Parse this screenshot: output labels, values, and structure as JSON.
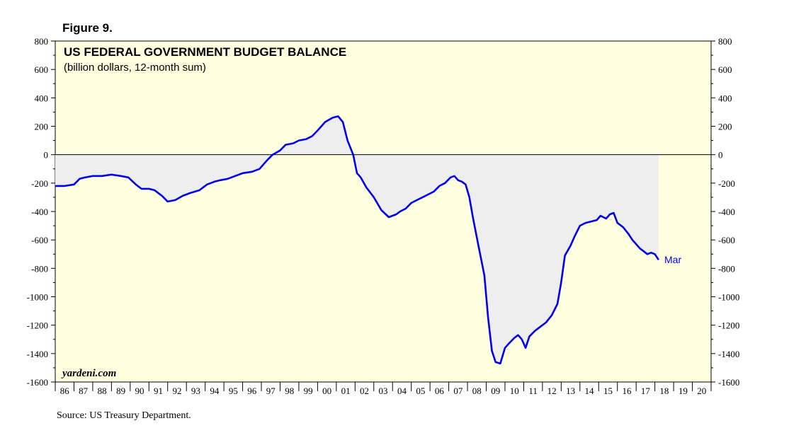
{
  "figure_label": "Figure 9.",
  "source": "Source: US Treasury Department.",
  "colors": {
    "plot_bg": "#ffffe0",
    "fill": "#eeeeee",
    "line": "#0000ee",
    "axis": "#000000"
  },
  "chart_data": {
    "type": "area",
    "title": "US FEDERAL GOVERNMENT BUDGET BALANCE",
    "subtitle": "(billion dollars, 12-month sum)",
    "watermark": "yardeni.com",
    "end_label": "Mar",
    "xlabel": "",
    "ylabel": "",
    "ylim": [
      -1600,
      800
    ],
    "yticks": [
      800,
      600,
      400,
      200,
      0,
      -200,
      -400,
      -600,
      -800,
      -1000,
      -1200,
      -1400,
      -1600
    ],
    "xlim": [
      1986,
      2021
    ],
    "xtick_labels": [
      "86",
      "87",
      "88",
      "89",
      "90",
      "91",
      "92",
      "93",
      "94",
      "95",
      "96",
      "97",
      "98",
      "99",
      "00",
      "01",
      "02",
      "03",
      "04",
      "05",
      "06",
      "07",
      "08",
      "09",
      "10",
      "11",
      "12",
      "13",
      "14",
      "15",
      "16",
      "17",
      "18",
      "19",
      "20"
    ],
    "grid": false,
    "fill_to_zero": true,
    "series": [
      {
        "x": [
          1986.0,
          1986.5,
          1987.0,
          1987.3,
          1987.6,
          1988.0,
          1988.5,
          1989.0,
          1989.5,
          1989.9,
          1990.3,
          1990.6,
          1991.0,
          1991.3,
          1991.7,
          1992.0,
          1992.4,
          1992.8,
          1993.2,
          1993.7,
          1994.1,
          1994.5,
          1994.8,
          1995.2,
          1995.6,
          1996.0,
          1996.5,
          1996.9,
          1997.3,
          1997.6,
          1998.0,
          1998.3,
          1998.7,
          1999.0,
          1999.4,
          1999.7,
          2000.0,
          2000.4,
          2000.8,
          2001.1,
          2001.35,
          2001.6,
          2001.9,
          2002.1,
          2002.3,
          2002.6,
          2003.0,
          2003.4,
          2003.8,
          2004.2,
          2004.4,
          2004.7,
          2005.0,
          2005.3,
          2005.6,
          2005.9,
          2006.2,
          2006.5,
          2006.8,
          2007.1,
          2007.3,
          2007.5,
          2007.7,
          2007.9,
          2008.1,
          2008.3,
          2008.6,
          2008.9,
          2009.1,
          2009.3,
          2009.5,
          2009.75,
          2010.0,
          2010.2,
          2010.5,
          2010.7,
          2010.9,
          2011.1,
          2011.3,
          2011.6,
          2011.9,
          2012.2,
          2012.5,
          2012.8,
          2013.0,
          2013.2,
          2013.5,
          2013.7,
          2014.0,
          2014.3,
          2014.6,
          2014.9,
          2015.1,
          2015.4,
          2015.6,
          2015.8,
          2016.0,
          2016.3,
          2016.6,
          2016.8,
          2017.0,
          2017.2,
          2017.4,
          2017.6,
          2017.8,
          2018.0,
          2018.2
        ],
        "y": [
          -220,
          -220,
          -210,
          -170,
          -160,
          -150,
          -150,
          -140,
          -150,
          -160,
          -210,
          -240,
          -240,
          -250,
          -290,
          -330,
          -320,
          -290,
          -270,
          -250,
          -210,
          -190,
          -180,
          -170,
          -150,
          -130,
          -120,
          -100,
          -40,
          0,
          30,
          70,
          80,
          100,
          110,
          130,
          170,
          230,
          260,
          270,
          230,
          100,
          0,
          -130,
          -160,
          -230,
          -300,
          -390,
          -440,
          -420,
          -400,
          -380,
          -340,
          -320,
          -300,
          -280,
          -260,
          -220,
          -200,
          -160,
          -150,
          -180,
          -190,
          -210,
          -300,
          -450,
          -650,
          -850,
          -1150,
          -1380,
          -1460,
          -1470,
          -1360,
          -1330,
          -1290,
          -1270,
          -1300,
          -1360,
          -1280,
          -1240,
          -1210,
          -1180,
          -1130,
          -1050,
          -900,
          -710,
          -640,
          -580,
          -500,
          -480,
          -470,
          -460,
          -430,
          -450,
          -420,
          -410,
          -480,
          -510,
          -560,
          -600,
          -630,
          -660,
          -680,
          -700,
          -690,
          -700,
          -740
        ]
      }
    ]
  }
}
